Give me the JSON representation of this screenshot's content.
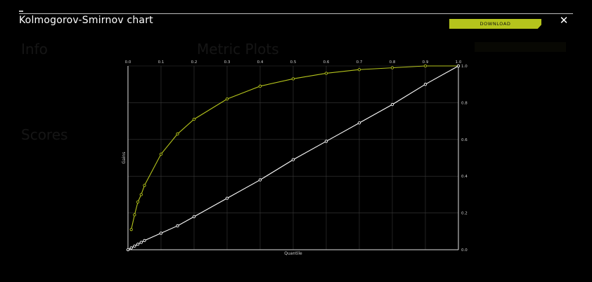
{
  "modal": {
    "title": "Kolmogorov-Smirnov chart",
    "download_label": "DOWNLOAD",
    "close_label": "✕"
  },
  "background": {
    "info_heading": "Info",
    "metric_plots_heading": "Metric Plots",
    "scores_heading": "Scores"
  },
  "chart_data": {
    "type": "line",
    "title": "",
    "xlabel": "Quantile",
    "ylabel": "Gains",
    "xlim": [
      0,
      1
    ],
    "ylim": [
      0,
      1
    ],
    "x_ticks": [
      "0.0",
      "0.1",
      "0.2",
      "0.3",
      "0.4",
      "0.5",
      "0.6",
      "0.7",
      "0.8",
      "0.9",
      "1.0"
    ],
    "y_ticks": [
      "0.0",
      "0.2",
      "0.4",
      "0.6",
      "0.8",
      "1.0"
    ],
    "grid": true,
    "series": [
      {
        "color": "#b5c41c",
        "x": [
          0.01,
          0.02,
          0.03,
          0.04,
          0.05,
          0.1,
          0.15,
          0.2,
          0.3,
          0.4,
          0.5,
          0.6,
          0.7,
          0.8,
          0.9,
          1.0
        ],
        "y": [
          0.11,
          0.19,
          0.26,
          0.3,
          0.35,
          0.52,
          0.63,
          0.71,
          0.82,
          0.89,
          0.93,
          0.96,
          0.98,
          0.99,
          1.0,
          1.0
        ]
      },
      {
        "color": "#ffffff",
        "x": [
          0.0,
          0.01,
          0.02,
          0.03,
          0.04,
          0.05,
          0.1,
          0.15,
          0.2,
          0.3,
          0.4,
          0.5,
          0.6,
          0.7,
          0.8,
          0.9,
          1.0
        ],
        "y": [
          0.0,
          0.01,
          0.02,
          0.03,
          0.04,
          0.05,
          0.09,
          0.13,
          0.18,
          0.28,
          0.38,
          0.49,
          0.59,
          0.69,
          0.79,
          0.9,
          1.0
        ]
      }
    ]
  }
}
